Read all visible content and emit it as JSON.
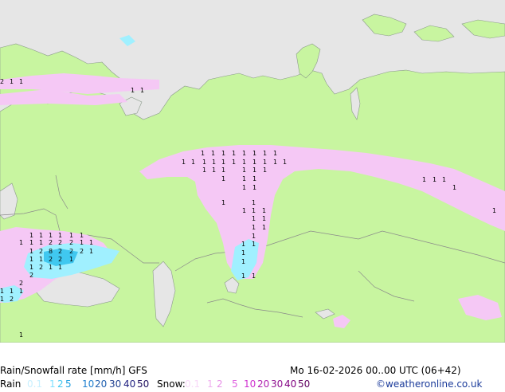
{
  "map": {
    "colors": {
      "sea": "#e6e6e6",
      "land": "#c8f5a0",
      "rain_light": "#a0f0ff",
      "rain_mid": "#40c8f0",
      "snow_light": "#f5c8f5",
      "snow_mid": "#f0a0e6",
      "border": "#888888"
    }
  },
  "footer": {
    "title": "Rain/Snowfall rate [mm/h] GFS",
    "datetime": "Mo 16-02-2026 00..00 UTC (06+42)",
    "rain_label": "Rain",
    "snow_label": "Snow:",
    "credit": "©weatheronline.co.uk",
    "rain_scale": [
      {
        "label": "0.1",
        "color": "#c8f0ff"
      },
      {
        "label": "1",
        "color": "#80e0ff"
      },
      {
        "label": "2",
        "color": "#40c8f0"
      },
      {
        "label": "5",
        "color": "#20a0e0"
      },
      {
        "label": "10",
        "color": "#2080d0"
      },
      {
        "label": "20",
        "color": "#2060b0"
      },
      {
        "label": "30",
        "color": "#204090"
      },
      {
        "label": "40",
        "color": "#202080"
      },
      {
        "label": "50",
        "color": "#201060"
      }
    ],
    "snow_scale": [
      {
        "label": "0.1",
        "color": "#f8d8f8"
      },
      {
        "label": "1",
        "color": "#f0b0f0"
      },
      {
        "label": "2",
        "color": "#e890e8"
      },
      {
        "label": "5",
        "color": "#e060e0"
      },
      {
        "label": "10",
        "color": "#d030d0"
      },
      {
        "label": "20",
        "color": "#b020b0"
      },
      {
        "label": "30",
        "color": "#901090"
      },
      {
        "label": "40",
        "color": "#800080"
      },
      {
        "label": "50",
        "color": "#600060"
      }
    ]
  }
}
